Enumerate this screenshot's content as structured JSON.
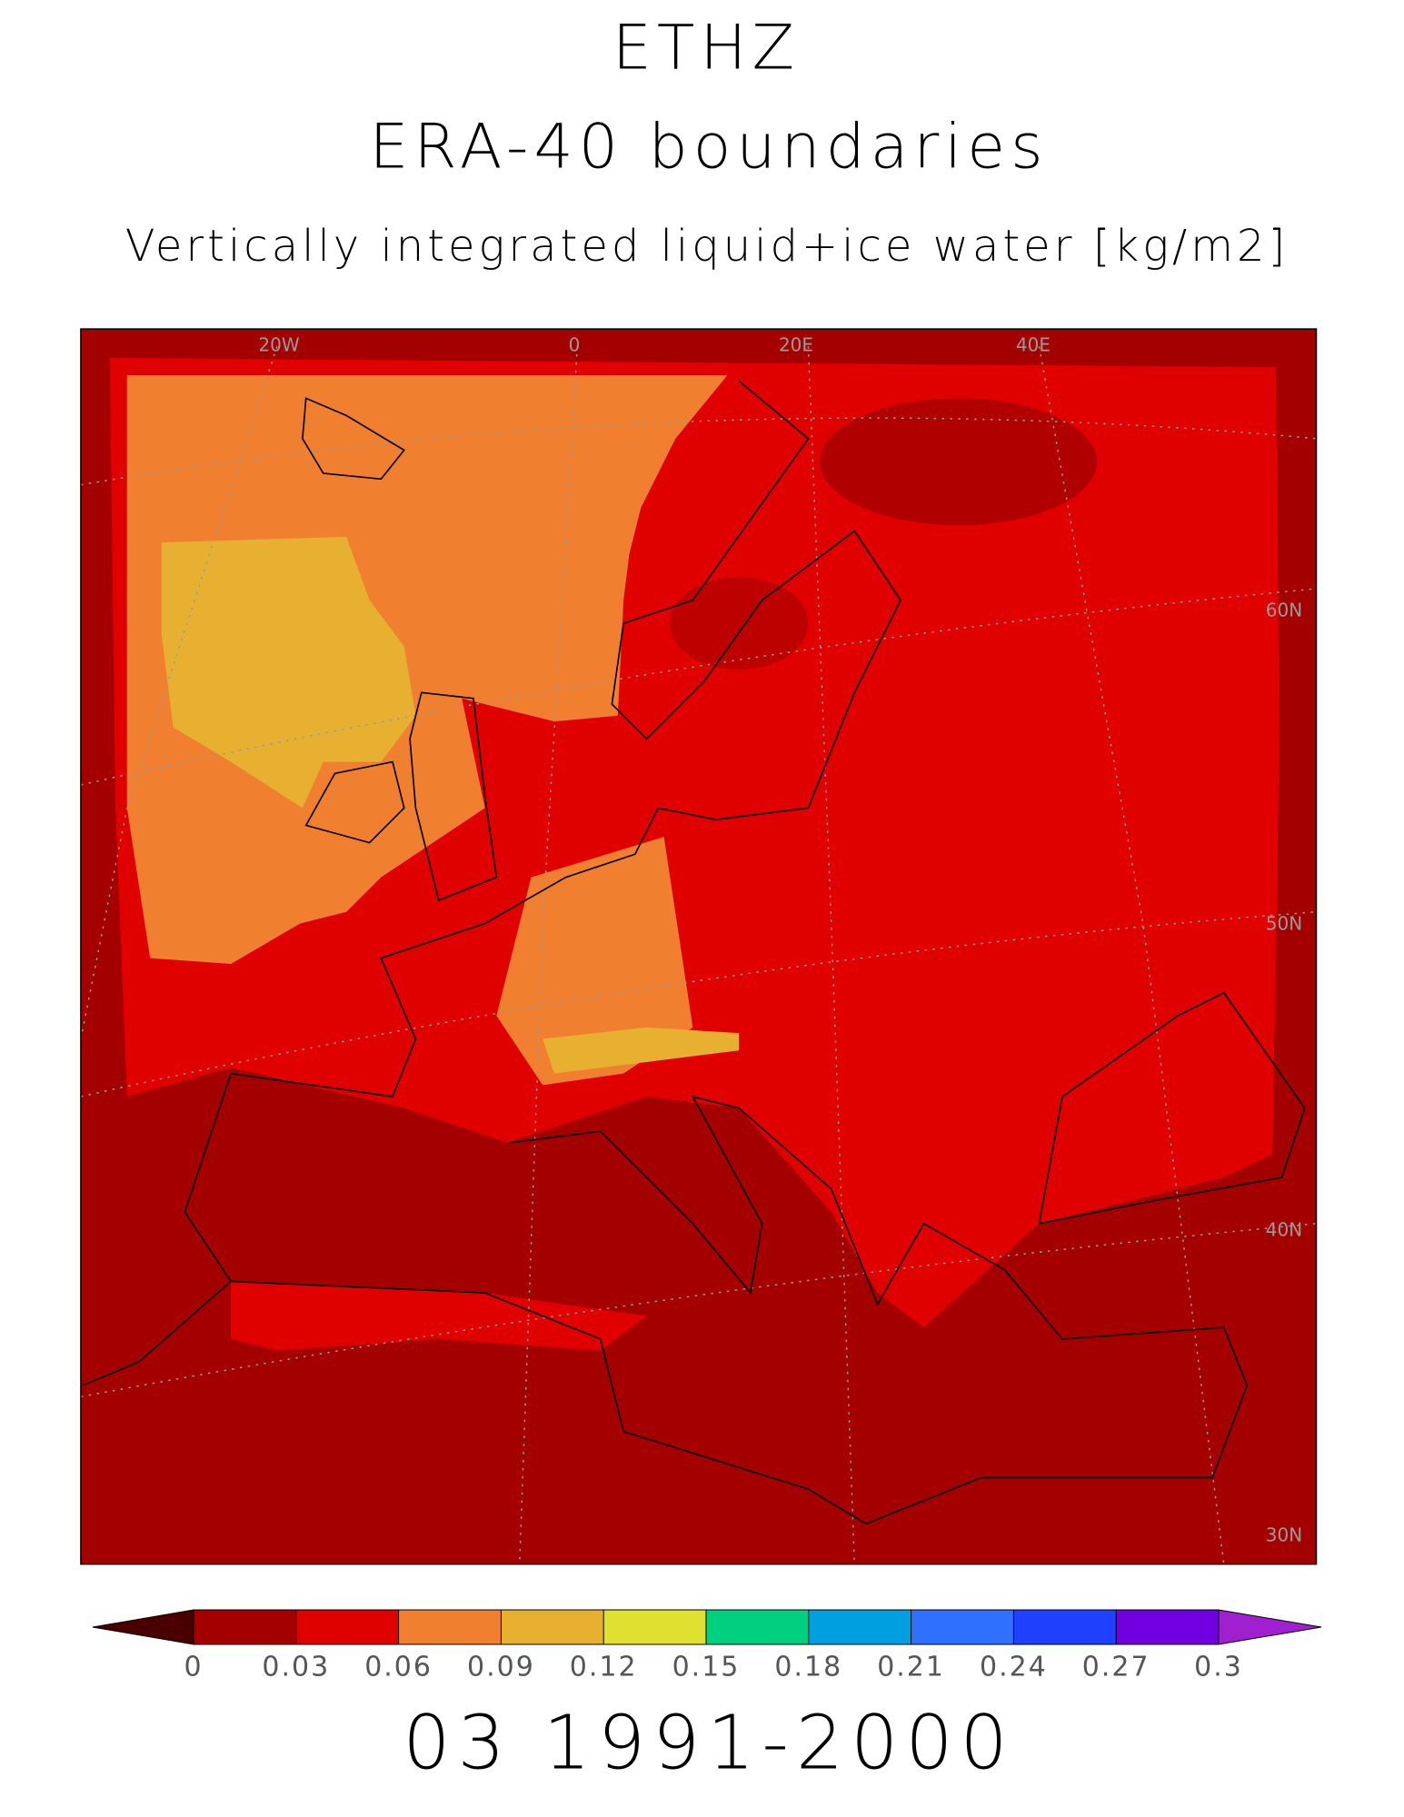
{
  "title": "ETHZ",
  "subtitle": "ERA-40 boundaries",
  "variable": "Vertically integrated liquid+ice water [kg/m2]",
  "map": {
    "lon_labels": [
      "20W",
      "0",
      "20E",
      "40E"
    ],
    "lat_labels": [
      "60N",
      "50N",
      "40N",
      "30N"
    ]
  },
  "colorbar": {
    "ticks": [
      0,
      0.03,
      0.06,
      0.09,
      0.12,
      0.15,
      0.18,
      0.21,
      0.24,
      0.27,
      0.3
    ],
    "colors": [
      "#a50000",
      "#e00000",
      "#f08030",
      "#e8b030",
      "#e0e030",
      "#00d080",
      "#00a0e0",
      "#3070ff",
      "#2040ff",
      "#7000e0"
    ],
    "under_color": "#4a0000",
    "over_color": "#a020d0"
  },
  "footer": "03 1991-2000"
}
